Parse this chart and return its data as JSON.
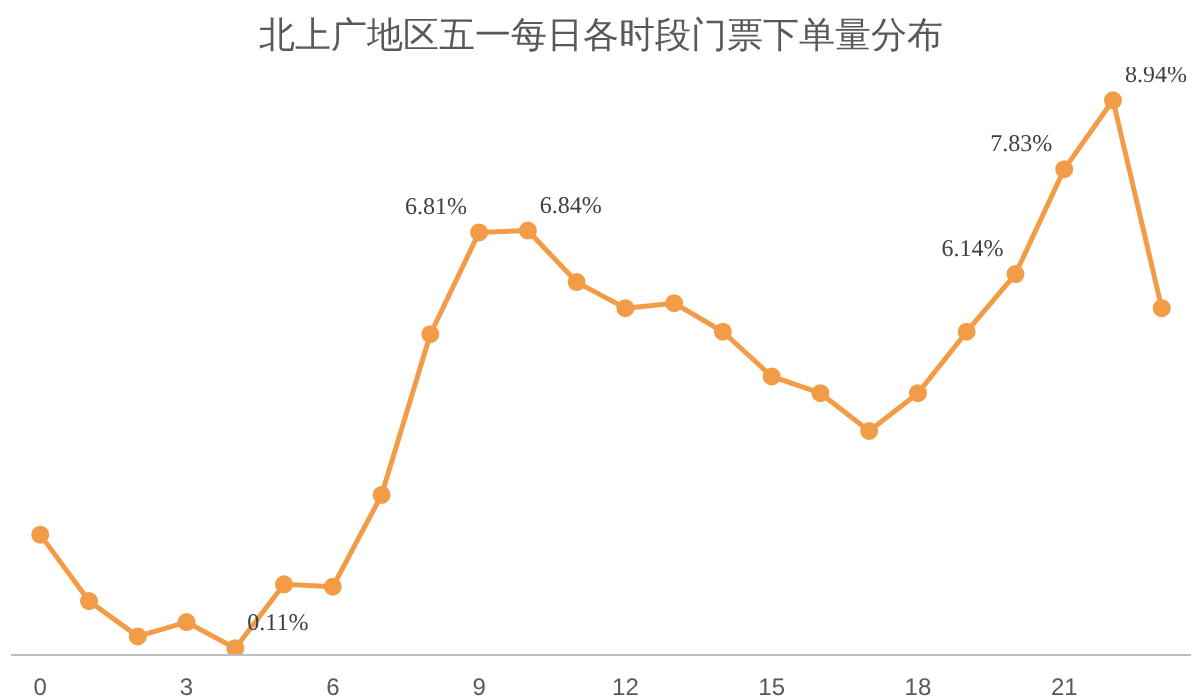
{
  "chart_data": {
    "type": "line",
    "title": "北上广地区五一每日各时段门票下单量分布",
    "x": [
      0,
      1,
      2,
      3,
      4,
      5,
      6,
      7,
      8,
      9,
      10,
      11,
      12,
      13,
      14,
      15,
      16,
      17,
      18,
      19,
      20,
      21,
      22,
      23
    ],
    "values": [
      1.94,
      0.87,
      0.3,
      0.53,
      0.11,
      1.14,
      1.1,
      2.58,
      5.17,
      6.81,
      6.84,
      6.01,
      5.59,
      5.67,
      5.21,
      4.49,
      4.22,
      3.61,
      4.22,
      5.21,
      6.14,
      7.83,
      8.94,
      5.59
    ],
    "value_labels": [
      null,
      null,
      null,
      null,
      "0.11%",
      null,
      null,
      null,
      null,
      "6.81%",
      "6.84%",
      null,
      null,
      null,
      null,
      null,
      null,
      null,
      null,
      null,
      "6.14%",
      "7.83%",
      "8.94%",
      null
    ],
    "color": "#f39c48",
    "marker": "circle",
    "line_style": "solid",
    "xlim": [
      -0.6,
      23.6
    ],
    "xticks": [
      0,
      3,
      6,
      9,
      12,
      15,
      18,
      21
    ],
    "tick_labels": "x"
  }
}
